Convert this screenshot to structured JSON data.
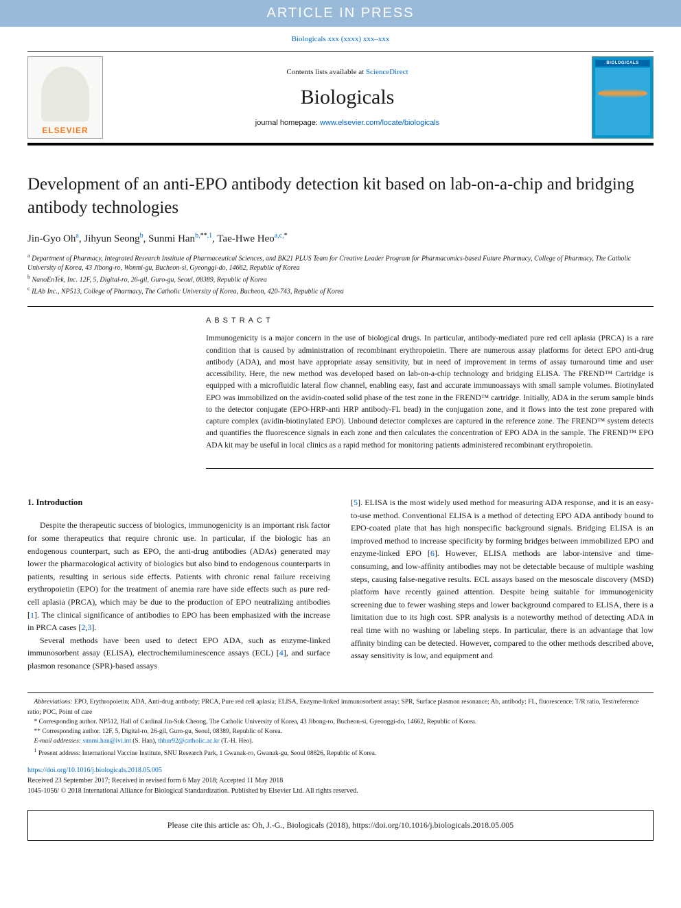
{
  "banner": "ARTICLE IN PRESS",
  "running_head": "Biologicals xxx (xxxx) xxx–xxx",
  "masthead": {
    "elsevier": "ELSEVIER",
    "contents_prefix": "Contents lists available at ",
    "contents_link": "ScienceDirect",
    "journal": "Biologicals",
    "homepage_prefix": "journal homepage: ",
    "homepage_url": "www.elsevier.com/locate/biologicals",
    "cover_title": "BIOLOGICALS"
  },
  "title": "Development of an anti-EPO antibody detection kit based on lab-on-a-chip and bridging antibody technologies",
  "authors_html": "Jin-Gyo Oh<sup>a</sup>, Jihyun Seong<sup>b</sup>, Sunmi Han<sup>b,**,1</sup>, Tae-Hwe Heo<sup>a,c,*</sup>",
  "affiliations": {
    "a": "Department of Pharmacy, Integrated Research Institute of Pharmaceutical Sciences, and BK21 PLUS Team for Creative Leader Program for Pharmacomics-based Future Pharmacy, College of Pharmacy, The Catholic University of Korea, 43 Jibong-ro, Wonmi-gu, Bucheon-si, Gyeonggi-do, 14662, Republic of Korea",
    "b": "NanoEnTek, Inc. 12F, 5, Digital-ro, 26-gil, Guro-gu, Seoul, 08389, Republic of Korea",
    "c": "ILAb Inc., NP513, College of Pharmacy, The Catholic University of Korea, Bucheon, 420-743, Republic of Korea"
  },
  "abstract_head": "ABSTRACT",
  "abstract": "Immunogenicity is a major concern in the use of biological drugs. In particular, antibody-mediated pure red cell aplasia (PRCA) is a rare condition that is caused by administration of recombinant erythropoietin. There are numerous assay platforms for detect EPO anti-drug antibody (ADA), and most have appropriate assay sensitivity, but in need of improvement in terms of assay turnaround time and user accessibility. Here, the new method was developed based on lab-on-a-chip technology and bridging ELISA. The FREND™ Cartridge is equipped with a microfluidic lateral flow channel, enabling easy, fast and accurate immunoassays with small sample volumes. Biotinylated EPO was immobilized on the avidin-coated solid phase of the test zone in the FREND™ cartridge. Initially, ADA in the serum sample binds to the detector conjugate (EPO-HRP-anti HRP antibody-FL bead) in the conjugation zone, and it flows into the test zone prepared with capture complex (avidin-biotinylated EPO). Unbound detector complexes are captured in the reference zone. The FREND™ system detects and quantifies the fluorescence signals in each zone and then calculates the concentration of EPO ADA in the sample. The FREND™ EPO ADA kit may be useful in local clinics as a rapid method for monitoring patients administered recombinant erythropoietin.",
  "section1_head": "1. Introduction",
  "col_left": {
    "p1": "Despite the therapeutic success of biologics, immunogenicity is an important risk factor for some therapeutics that require chronic use. In particular, if the biologic has an endogenous counterpart, such as EPO, the anti-drug antibodies (ADAs) generated may lower the pharmacological activity of biologics but also bind to endogenous counterparts in patients, resulting in serious side effects. Patients with chronic renal failure receiving erythropoietin (EPO) for the treatment of anemia rare have side effects such as pure red-cell aplasia (PRCA), which may be due to the production of EPO neutralizing antibodies [",
    "ref1": "1",
    "p1b": "]. The clinical significance of antibodies to EPO has been emphasized with the increase in PRCA cases [",
    "ref2": "2",
    "ref3": "3",
    "p1c": "].",
    "p2": "Several methods have been used to detect EPO ADA, such as enzyme-linked immunosorbent assay (ELISA), electrochemiluminescence assays (ECL) [",
    "ref4": "4",
    "p2b": "], and surface plasmon resonance (SPR)-based assays"
  },
  "col_right": {
    "p1a": "[",
    "ref5": "5",
    "p1": "]. ELISA is the most widely used method for measuring ADA response, and it is an easy-to-use method. Conventional ELISA is a method of detecting EPO ADA antibody bound to EPO-coated plate that has high nonspecific background signals. Bridging ELISA is an improved method to increase specificity by forming bridges between immobilized EPO and enzyme-linked EPO [",
    "ref6": "6",
    "p1b": "]. However, ELISA methods are labor-intensive and time-consuming, and low-affinity antibodies may not be detectable because of multiple washing steps, causing false-negative results. ECL assays based on the mesoscale discovery (MSD) platform have recently gained attention. Despite being suitable for immunogenicity screening due to fewer washing steps and lower background compared to ELISA, there is a limitation due to its high cost. SPR analysis is a noteworthy method of detecting ADA in real time with no washing or labeling steps. In particular, there is an advantage that low affinity binding can be detected. However, compared to the other methods described above, assay sensitivity is low, and equipment and"
  },
  "footnotes": {
    "abbrev_label": "Abbreviations:",
    "abbrev": " EPO, Erythropoietin; ADA, Anti-drug antibody; PRCA, Pure red cell aplasia; ELISA, Enzyme-linked immunosorbent assay; SPR, Surface plasmon resonance; Ab, antibody; FL, fluorescence; T/R ratio, Test/reference ratio; POC, Point of care",
    "corr1": "* Corresponding author. NP512, Hall of Cardinal Jin-Suk Cheong, The Catholic University of Korea, 43 Jibong-ro, Bucheon-si, Gyeonggi-do, 14662, Republic of Korea.",
    "corr2": "** Corresponding author. 12F, 5, Digital-ro, 26-gil, Guro-gu, Seoul, 08389, Republic of Korea.",
    "email_label": "E-mail addresses: ",
    "email1": "sunmi.han@ivi.int",
    "email1_who": " (S. Han), ",
    "email2": "thhur92@catholic.ac.kr",
    "email2_who": " (T.-H. Heo).",
    "present": "Present address: International Vaccine Institute, SNU Research Park, 1 Gwanak-ro, Gwanak-gu, Seoul 08826, Republic of Korea."
  },
  "doi": {
    "url": "https://doi.org/10.1016/j.biologicals.2018.05.005",
    "received": "Received 23 September 2017; Received in revised form 6 May 2018; Accepted 11 May 2018",
    "copyright": "1045-1056/ © 2018 International Alliance for Biological Standardization. Published by Elsevier Ltd. All rights reserved."
  },
  "cite": "Please cite this article as: Oh, J.-G., Biologicals (2018), https://doi.org/10.1016/j.biologicals.2018.05.005"
}
